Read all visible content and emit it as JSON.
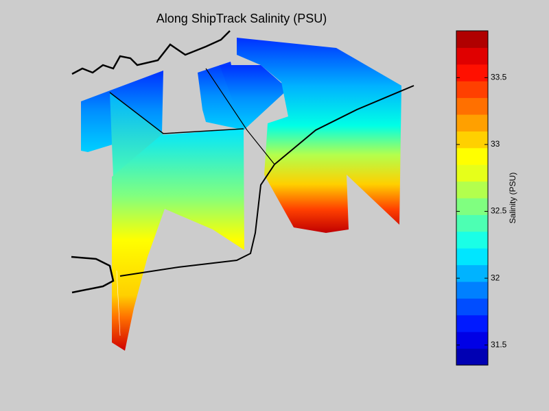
{
  "chart_data": {
    "type": "colorbar-curtains",
    "title": "Along ShipTrack Salinity (PSU)",
    "colorbar_label": "Salinity (PSU)",
    "clim": [
      31.35,
      33.85
    ],
    "cticks": [
      31.5,
      32,
      32.5,
      33,
      33.5
    ],
    "colormap": [
      "#0000B3",
      "#0000E6",
      "#001AFF",
      "#004DFF",
      "#0080FF",
      "#00B3FF",
      "#00E6FF",
      "#1AFFE6",
      "#4DFFB3",
      "#80FF80",
      "#B3FF4D",
      "#E6FF1A",
      "#FFFF00",
      "#FFD000",
      "#FFA000",
      "#FF7000",
      "#FF4000",
      "#FF1000",
      "#E00000",
      "#B00000"
    ]
  }
}
